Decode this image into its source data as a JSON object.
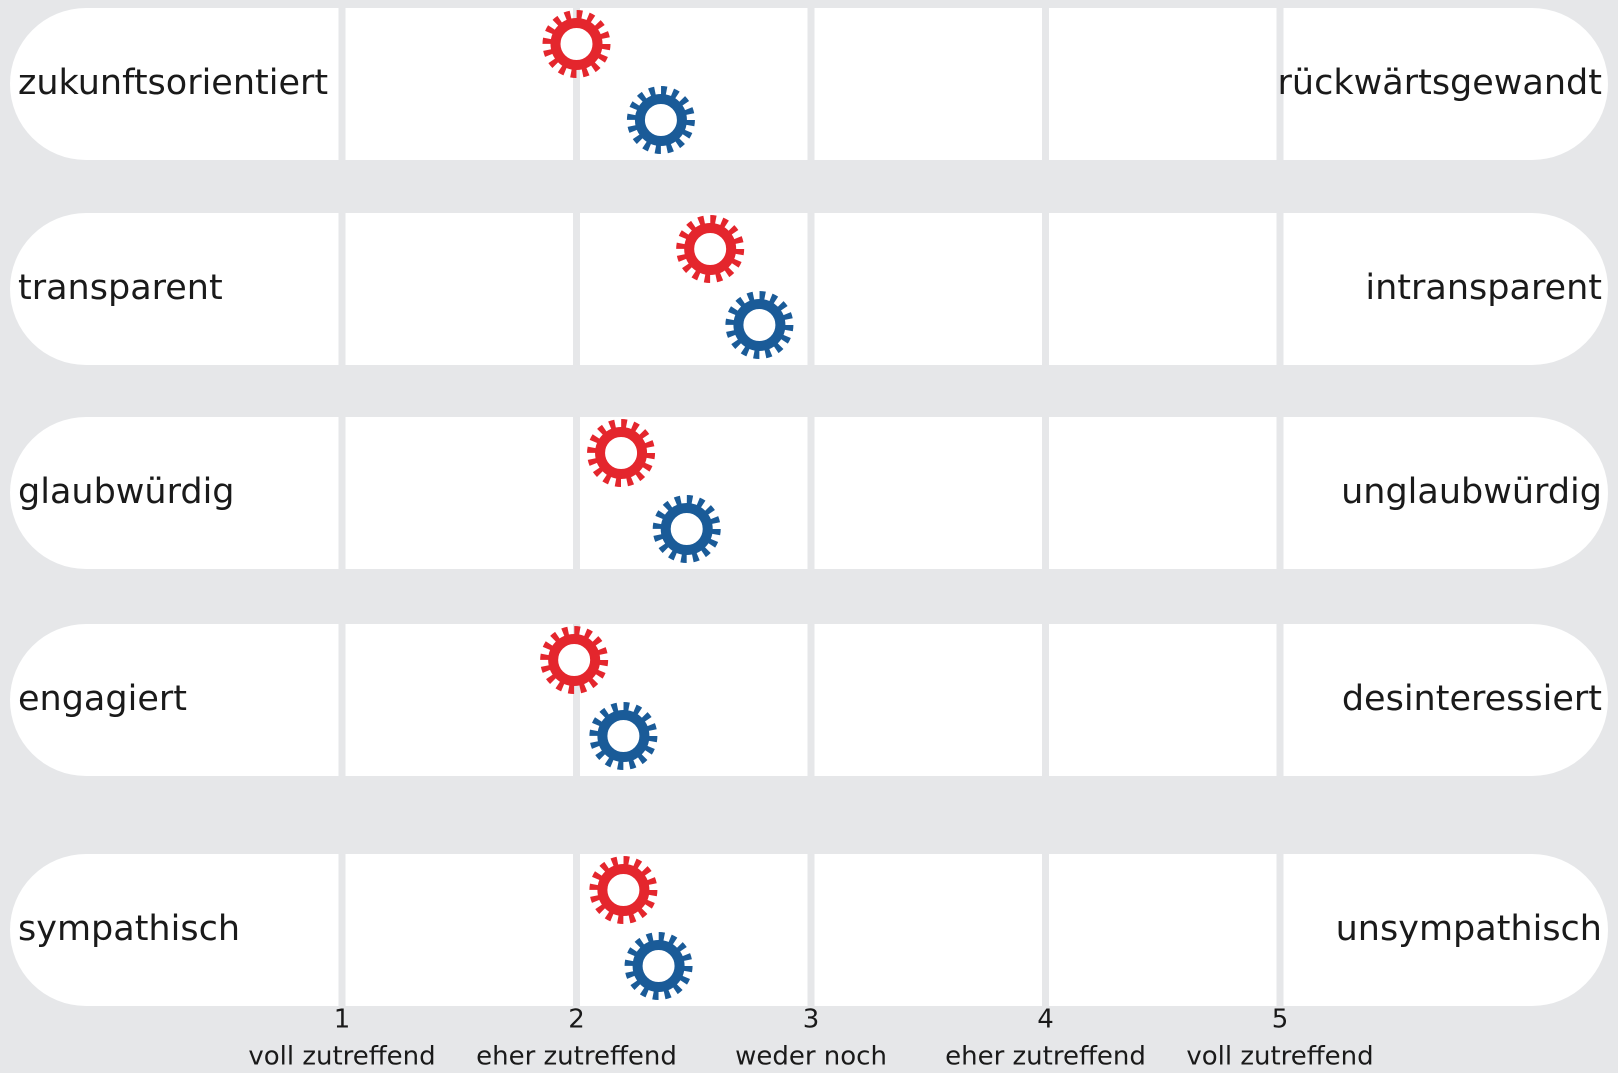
{
  "chart_data": {
    "type": "semantic-differential",
    "categories": [
      "zukunftsorientiert",
      "transparent",
      "glaubwürdig",
      "engagiert",
      "sympathisch"
    ],
    "categories_right": [
      "rückwärtsgewandt",
      "intransparent",
      "unglaubwürdig",
      "desinteressiert",
      "unsympathisch"
    ],
    "series": [
      {
        "color": "#e4262d",
        "values": [
          2.0,
          2.57,
          2.19,
          1.99,
          2.2
        ]
      },
      {
        "color": "#1a5b98",
        "values": [
          2.36,
          2.78,
          2.47,
          2.2,
          2.35
        ]
      }
    ],
    "xlim": [
      1,
      5
    ],
    "xticks": [
      1,
      2,
      3,
      4,
      5
    ],
    "xtick_labels": [
      "voll zutreffend",
      "eher zutreffend",
      "weder noch",
      "eher zutreffend",
      "voll zutreffend"
    ],
    "grid": true
  }
}
